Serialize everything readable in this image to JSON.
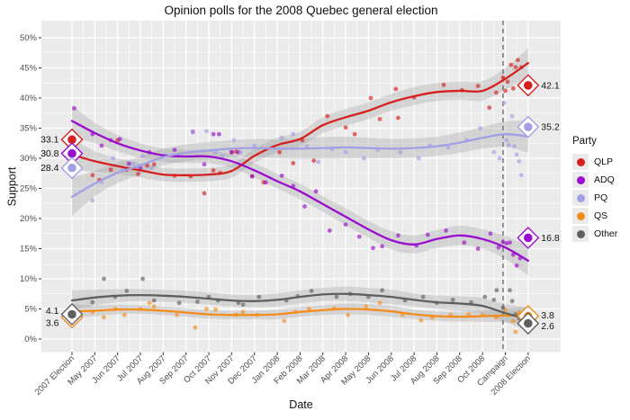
{
  "title": "Opinion polls for the 2008 Quebec general election",
  "x_axis": {
    "label": "Date",
    "ticks": [
      "2007 Election",
      "May 2007",
      "Jun 2007",
      "Jul 2007",
      "Aug 2007",
      "Sep 2007",
      "Oct 2007",
      "Nov 2007",
      "Dec 2007",
      "Jan 2008",
      "Feb 2008",
      "Mar 2008",
      "Apr 2008",
      "May 2008",
      "Jun 2008",
      "Jul 2008",
      "Aug 2008",
      "Sep 2008",
      "Oct 2008",
      "Campaign",
      "2008 Election"
    ]
  },
  "y_axis": {
    "label": "Support",
    "ticks": [
      "0%",
      "5%",
      "10%",
      "15%",
      "20%",
      "25%",
      "30%",
      "35%",
      "40%",
      "45%",
      "50%"
    ],
    "min": 0,
    "max": 50
  },
  "legend": {
    "title": "Party",
    "entries": [
      {
        "label": "QLP",
        "color": "#d62020"
      },
      {
        "label": "ADQ",
        "color": "#9a0dce"
      },
      {
        "label": "PQ",
        "color": "#a2a0e4"
      },
      {
        "label": "QS",
        "color": "#f28d1e"
      },
      {
        "label": "Other",
        "color": "#5f5f5f"
      }
    ]
  },
  "colors": {
    "panel_background": "#ebebeb",
    "gridline": "#ffffff",
    "confidence_band": "#9a9a9a",
    "axis_text": "#4d4d4d",
    "tick_mark": "#333333",
    "campaign_line": "#6e6e6e",
    "result_label_text": "#111111",
    "diamond_fill": "#ffffff"
  },
  "campaign_line_x": 18.9,
  "chart_data": {
    "type": "line",
    "title": "Opinion polls for the 2008 Quebec general election",
    "xlabel": "Date",
    "ylabel": "Support",
    "ylim": [
      0,
      50
    ],
    "grid": true,
    "legend_position": "right",
    "categories": [
      "2007 Election",
      "May 2007",
      "Jun 2007",
      "Jul 2007",
      "Aug 2007",
      "Sep 2007",
      "Oct 2007",
      "Nov 2007",
      "Dec 2007",
      "Jan 2008",
      "Feb 2008",
      "Mar 2008",
      "Apr 2008",
      "May 2008",
      "Jun 2008",
      "Jul 2008",
      "Aug 2008",
      "Sep 2008",
      "Oct 2008",
      "Campaign",
      "2008 Election"
    ],
    "series": [
      {
        "name": "QLP",
        "color": "#d62020",
        "result_2007": 33.1,
        "result_2008": 42.1,
        "result_2007_label": "33.1",
        "result_2008_label": "42.1",
        "label_dy_2007": 0,
        "label_dy_2008": 0,
        "trend": [
          30.6,
          29.5,
          28.7,
          28.0,
          27.3,
          27.2,
          27.3,
          27.9,
          30.4,
          32.2,
          33.2,
          35.5,
          36.8,
          37.9,
          39.3,
          40.3,
          41.0,
          41.2,
          41.2,
          43.2,
          45.8
        ],
        "ci": [
          2.6,
          1.7,
          1.3,
          1.2,
          1.1,
          1.1,
          1.1,
          1.1,
          1.2,
          1.2,
          1.2,
          1.3,
          1.4,
          1.4,
          1.4,
          1.5,
          1.5,
          1.5,
          1.6,
          1.8,
          2.5
        ],
        "points": [
          [
            0.9,
            27.2
          ],
          [
            1.2,
            26.4
          ],
          [
            1.7,
            28.1
          ],
          [
            2.0,
            33.0
          ],
          [
            2.4,
            28.1
          ],
          [
            2.9,
            27.4
          ],
          [
            3.3,
            28.8
          ],
          [
            3.6,
            29.0
          ],
          [
            4.5,
            27.1
          ],
          [
            5.2,
            27.0
          ],
          [
            5.8,
            24.2
          ],
          [
            6.2,
            28.0
          ],
          [
            6.5,
            27.6
          ],
          [
            7.0,
            31.0
          ],
          [
            7.2,
            31.1
          ],
          [
            7.9,
            27.0
          ],
          [
            8.4,
            26.0
          ],
          [
            9.1,
            31.0
          ],
          [
            9.7,
            29.2
          ],
          [
            10.1,
            33.0
          ],
          [
            10.6,
            29.6
          ],
          [
            11.2,
            37.0
          ],
          [
            12.0,
            35.1
          ],
          [
            12.4,
            34.0
          ],
          [
            13.1,
            40.0
          ],
          [
            13.5,
            36.5
          ],
          [
            14.2,
            41.5
          ],
          [
            14.3,
            36.7
          ],
          [
            15.0,
            40.1
          ],
          [
            16.3,
            42.2
          ],
          [
            17.1,
            41.3
          ],
          [
            17.8,
            42.0
          ],
          [
            18.3,
            38.4
          ],
          [
            18.6,
            40.9
          ],
          [
            18.9,
            43.4
          ],
          [
            19.0,
            41.2
          ],
          [
            19.1,
            42.7
          ],
          [
            19.25,
            45.5
          ],
          [
            19.35,
            41.6
          ],
          [
            19.45,
            45.1
          ],
          [
            19.55,
            46.3
          ],
          [
            19.7,
            45.1
          ]
        ]
      },
      {
        "name": "ADQ",
        "color": "#9a0dce",
        "result_2007": 30.8,
        "result_2008": 16.8,
        "result_2007_label": "30.8",
        "result_2008_label": "16.8",
        "label_dy_2007": 0,
        "label_dy_2008": 0,
        "trend": [
          36.2,
          34.2,
          32.5,
          31.3,
          30.5,
          30.3,
          30.3,
          29.5,
          28.0,
          26.2,
          24.5,
          22.4,
          20.3,
          18.2,
          16.4,
          15.7,
          16.6,
          17.2,
          16.6,
          15.2,
          13.0
        ],
        "ci": [
          2.6,
          1.7,
          1.4,
          1.2,
          1.1,
          1.1,
          1.1,
          1.1,
          1.2,
          1.2,
          1.3,
          1.3,
          1.4,
          1.4,
          1.5,
          1.5,
          1.5,
          1.6,
          1.6,
          1.9,
          2.5
        ],
        "points": [
          [
            0.1,
            38.3
          ],
          [
            0.9,
            34.0
          ],
          [
            1.3,
            32.1
          ],
          [
            1.7,
            33.0
          ],
          [
            2.1,
            33.2
          ],
          [
            2.5,
            29.1
          ],
          [
            3.0,
            28.4
          ],
          [
            3.4,
            31.0
          ],
          [
            4.5,
            31.4
          ],
          [
            5.3,
            34.4
          ],
          [
            5.8,
            29.0
          ],
          [
            6.2,
            34.0
          ],
          [
            6.45,
            34.0
          ],
          [
            7.0,
            31.0
          ],
          [
            7.3,
            31.0
          ],
          [
            7.9,
            27.0
          ],
          [
            8.5,
            26.0
          ],
          [
            9.2,
            27.1
          ],
          [
            9.7,
            25.4
          ],
          [
            10.2,
            22.0
          ],
          [
            10.7,
            24.5
          ],
          [
            11.3,
            18.0
          ],
          [
            12.0,
            19.0
          ],
          [
            12.6,
            17.0
          ],
          [
            13.2,
            15.1
          ],
          [
            13.6,
            15.4
          ],
          [
            14.3,
            17.2
          ],
          [
            15.1,
            15.5
          ],
          [
            15.6,
            17.3
          ],
          [
            16.4,
            18.0
          ],
          [
            17.2,
            16.0
          ],
          [
            17.8,
            15.0
          ],
          [
            18.35,
            17.5
          ],
          [
            18.7,
            15.2
          ],
          [
            18.9,
            16.1
          ],
          [
            19.05,
            15.9
          ],
          [
            19.2,
            16.0
          ],
          [
            19.35,
            14.0
          ],
          [
            19.5,
            12.2
          ],
          [
            19.65,
            13.4
          ]
        ]
      },
      {
        "name": "PQ",
        "color": "#a2a0e4",
        "result_2007": 28.4,
        "result_2008": 35.2,
        "result_2007_label": "28.4",
        "result_2008_label": "35.2",
        "label_dy_2007": 0,
        "label_dy_2008": 0,
        "trend": [
          23.6,
          25.8,
          27.6,
          28.8,
          30.2,
          30.9,
          31.3,
          31.6,
          31.7,
          31.6,
          31.6,
          31.7,
          31.8,
          31.7,
          31.6,
          31.7,
          32.0,
          32.6,
          33.4,
          34.0,
          33.6
        ],
        "ci": [
          3.2,
          2.1,
          1.7,
          1.5,
          1.4,
          1.4,
          1.4,
          1.4,
          1.5,
          1.6,
          1.7,
          1.8,
          1.8,
          1.7,
          1.6,
          1.6,
          1.6,
          1.7,
          1.8,
          2.1,
          2.7
        ],
        "points": [
          [
            0.9,
            23.0
          ],
          [
            1.3,
            26.0
          ],
          [
            1.8,
            30.0
          ],
          [
            2.2,
            28.0
          ],
          [
            2.7,
            29.1
          ],
          [
            3.1,
            30.4
          ],
          [
            3.5,
            28.4
          ],
          [
            4.5,
            30.5
          ],
          [
            5.3,
            34.3
          ],
          [
            5.9,
            34.5
          ],
          [
            6.3,
            31.0
          ],
          [
            6.6,
            30.4
          ],
          [
            7.1,
            33.0
          ],
          [
            7.4,
            31.0
          ],
          [
            8.0,
            32.1
          ],
          [
            9.2,
            33.4
          ],
          [
            9.7,
            34.0
          ],
          [
            10.3,
            32.0
          ],
          [
            10.8,
            29.4
          ],
          [
            11.4,
            31.5
          ],
          [
            12.0,
            31.0
          ],
          [
            12.8,
            30.0
          ],
          [
            13.4,
            31.4
          ],
          [
            14.4,
            31.0
          ],
          [
            15.2,
            30.0
          ],
          [
            15.7,
            32.1
          ],
          [
            16.5,
            31.8
          ],
          [
            17.3,
            33.0
          ],
          [
            17.9,
            35.0
          ],
          [
            18.5,
            31.0
          ],
          [
            18.75,
            30.0
          ],
          [
            18.95,
            39.2
          ],
          [
            19.05,
            33.0
          ],
          [
            19.15,
            32.2
          ],
          [
            19.3,
            37.0
          ],
          [
            19.4,
            32.0
          ],
          [
            19.5,
            30.6
          ],
          [
            19.6,
            29.5
          ],
          [
            19.7,
            27.2
          ]
        ]
      },
      {
        "name": "QS",
        "color": "#f28d1e",
        "result_2007": 3.6,
        "result_2008": 3.8,
        "result_2007_label": "3.6",
        "result_2008_label": "3.8",
        "label_dy_2007": 6,
        "label_dy_2008": -1,
        "trend": [
          4.6,
          4.7,
          4.9,
          4.9,
          4.7,
          4.4,
          4.1,
          4.0,
          4.0,
          4.1,
          4.5,
          4.8,
          5.0,
          4.9,
          4.6,
          4.1,
          3.8,
          3.7,
          3.8,
          3.9,
          4.0
        ],
        "ci": [
          1.2,
          0.9,
          0.8,
          0.7,
          0.7,
          0.7,
          0.7,
          0.7,
          0.7,
          0.8,
          0.8,
          0.8,
          0.9,
          0.9,
          0.9,
          0.8,
          0.8,
          0.8,
          0.9,
          1.1,
          1.4
        ],
        "points": [
          [
            0.9,
            4.5
          ],
          [
            1.4,
            3.6
          ],
          [
            1.9,
            5.0
          ],
          [
            2.3,
            4.0
          ],
          [
            3.0,
            5.0
          ],
          [
            3.4,
            6.0
          ],
          [
            3.6,
            5.4
          ],
          [
            4.6,
            4.0
          ],
          [
            5.4,
            1.9
          ],
          [
            5.9,
            5.0
          ],
          [
            6.3,
            4.9
          ],
          [
            7.2,
            4.0
          ],
          [
            7.5,
            4.5
          ],
          [
            8.1,
            4.0
          ],
          [
            9.3,
            3.0
          ],
          [
            9.8,
            4.5
          ],
          [
            10.4,
            5.0
          ],
          [
            11.5,
            5.1
          ],
          [
            12.1,
            4.0
          ],
          [
            12.9,
            5.4
          ],
          [
            13.5,
            6.0
          ],
          [
            14.5,
            4.0
          ],
          [
            15.3,
            3.1
          ],
          [
            15.8,
            3.6
          ],
          [
            16.6,
            4.0
          ],
          [
            17.4,
            4.1
          ],
          [
            18.0,
            4.0
          ],
          [
            18.6,
            3.6
          ],
          [
            19.0,
            4.8
          ],
          [
            19.15,
            4.0
          ],
          [
            19.35,
            3.0
          ],
          [
            19.45,
            1.2
          ],
          [
            19.6,
            4.4
          ]
        ]
      },
      {
        "name": "Other",
        "color": "#5f5f5f",
        "result_2007": 4.1,
        "result_2008": 2.6,
        "result_2007_label": "4.1",
        "result_2008_label": "2.6",
        "label_dy_2007": -4,
        "label_dy_2008": 3,
        "trend": [
          6.4,
          6.9,
          7.2,
          7.3,
          7.2,
          7.0,
          6.7,
          6.4,
          6.3,
          6.5,
          7.0,
          7.4,
          7.5,
          7.3,
          7.0,
          6.5,
          6.1,
          5.9,
          5.5,
          4.3,
          3.3
        ],
        "ci": [
          1.7,
          1.3,
          1.1,
          1.0,
          1.0,
          1.0,
          1.0,
          1.0,
          1.0,
          1.1,
          1.1,
          1.1,
          1.2,
          1.2,
          1.2,
          1.1,
          1.1,
          1.2,
          1.3,
          1.5,
          1.9
        ],
        "points": [
          [
            0.9,
            6.1
          ],
          [
            1.4,
            10.0
          ],
          [
            1.9,
            7.0
          ],
          [
            2.4,
            8.0
          ],
          [
            3.1,
            10.0
          ],
          [
            3.6,
            6.4
          ],
          [
            4.7,
            6.0
          ],
          [
            5.5,
            6.2
          ],
          [
            6.0,
            7.0
          ],
          [
            6.4,
            6.4
          ],
          [
            7.3,
            6.0
          ],
          [
            7.5,
            5.7
          ],
          [
            8.2,
            7.0
          ],
          [
            9.4,
            6.4
          ],
          [
            9.9,
            7.1
          ],
          [
            10.5,
            8.0
          ],
          [
            11.6,
            7.0
          ],
          [
            12.2,
            7.5
          ],
          [
            13.0,
            7.0
          ],
          [
            13.6,
            8.1
          ],
          [
            14.6,
            6.4
          ],
          [
            15.4,
            7.0
          ],
          [
            16.0,
            6.0
          ],
          [
            16.7,
            6.5
          ],
          [
            17.5,
            6.1
          ],
          [
            18.1,
            7.0
          ],
          [
            18.5,
            6.5
          ],
          [
            18.62,
            8.1
          ],
          [
            18.9,
            5.2
          ],
          [
            19.2,
            8.1
          ],
          [
            19.3,
            6.3
          ],
          [
            19.45,
            4.1
          ],
          [
            19.6,
            3.4
          ]
        ]
      }
    ],
    "annotations": {
      "campaign_line_x": 18.9,
      "election_2007_results": {
        "QLP": 33.1,
        "ADQ": 30.8,
        "PQ": 28.4,
        "Other": 4.1,
        "QS": 3.6
      },
      "election_2008_results": {
        "QLP": 42.1,
        "PQ": 35.2,
        "ADQ": 16.8,
        "QS": 3.8,
        "Other": 2.6
      }
    }
  }
}
